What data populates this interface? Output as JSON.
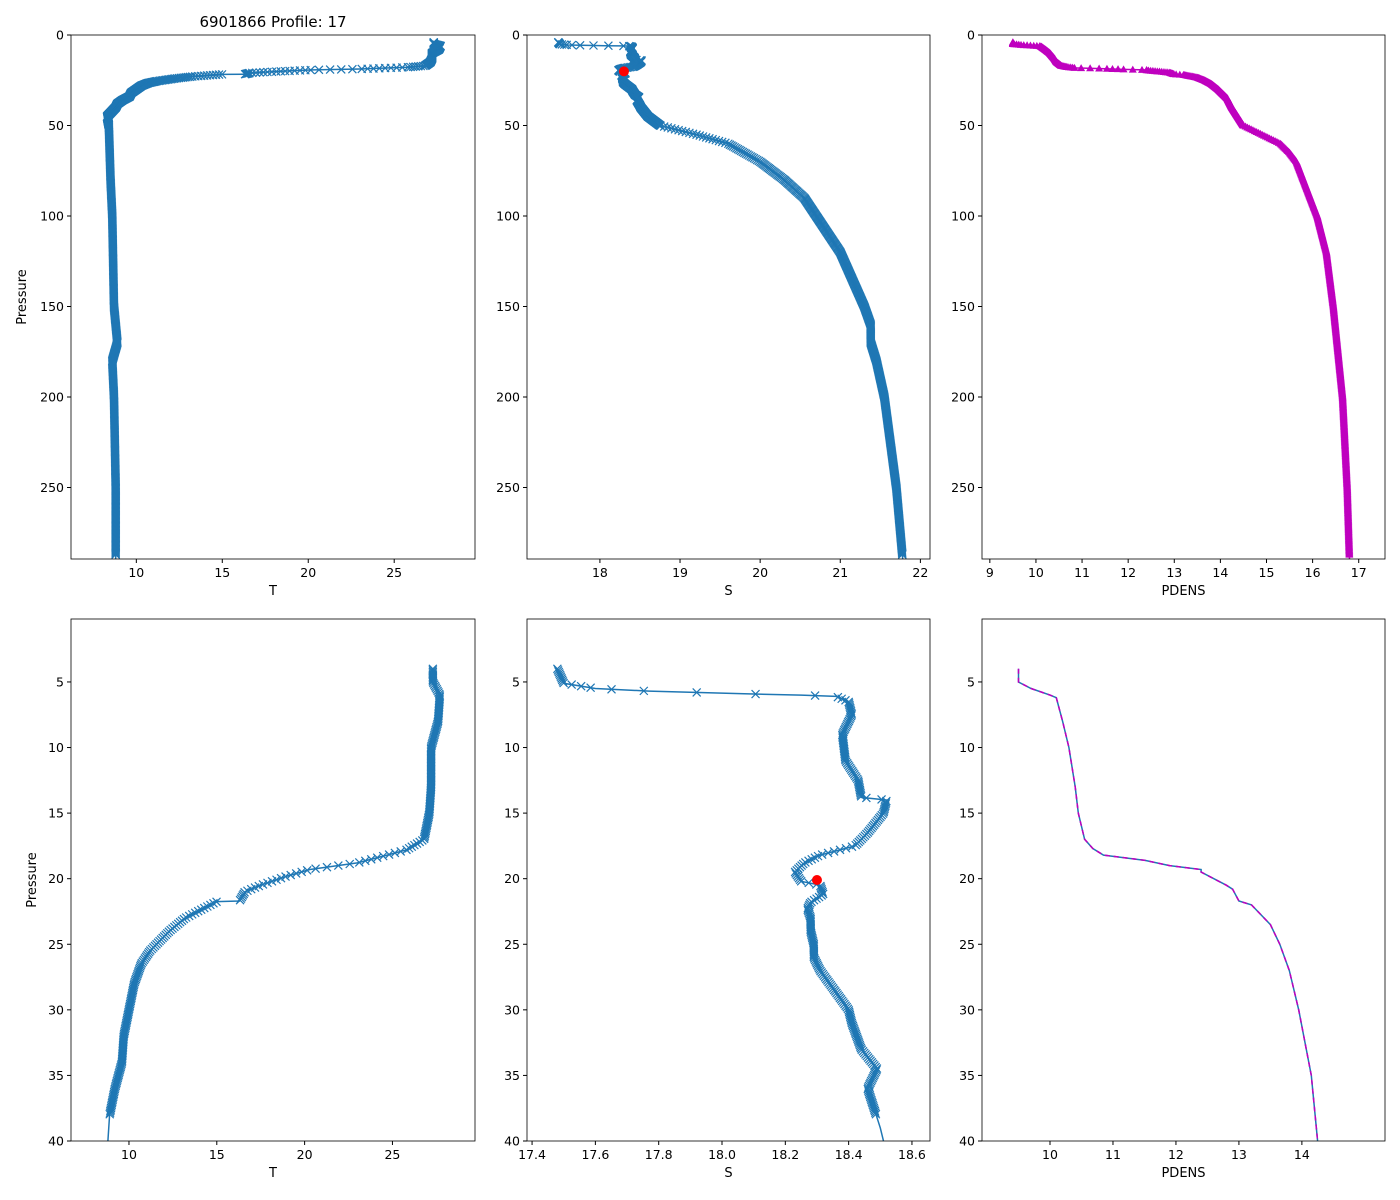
{
  "title": "6901866 Profile: 17",
  "colors": {
    "line": "#1f77b4",
    "pdens": "#bf00bf",
    "marker_red": "#ff0000"
  },
  "chart_data": {
    "type": "line",
    "profiles": {
      "T": [
        [
          4,
          27.3
        ],
        [
          5,
          27.3
        ],
        [
          6,
          27.7
        ],
        [
          8,
          27.6
        ],
        [
          10,
          27.2
        ],
        [
          13,
          27.2
        ],
        [
          15,
          27.1
        ],
        [
          17,
          26.8
        ],
        [
          17.8,
          25.8
        ],
        [
          18.2,
          24.7
        ],
        [
          18.8,
          23
        ],
        [
          19.3,
          20.3
        ],
        [
          19.8,
          19
        ],
        [
          20.5,
          17.5
        ],
        [
          21,
          16.6
        ],
        [
          21.7,
          16.3
        ],
        [
          21.75,
          15
        ],
        [
          22.3,
          14.2
        ],
        [
          23,
          13.2
        ],
        [
          24,
          12.3
        ],
        [
          25.5,
          11.2
        ],
        [
          26.5,
          10.7
        ],
        [
          28,
          10.3
        ],
        [
          30,
          10
        ],
        [
          32,
          9.7
        ],
        [
          34,
          9.6
        ],
        [
          36,
          9.2
        ],
        [
          38,
          8.9
        ],
        [
          40,
          8.8
        ],
        [
          45,
          8.3
        ],
        [
          50,
          8.4
        ],
        [
          80,
          8.5
        ],
        [
          100,
          8.6
        ],
        [
          150,
          8.7
        ],
        [
          170,
          8.9
        ],
        [
          180,
          8.6
        ],
        [
          200,
          8.7
        ],
        [
          250,
          8.8
        ],
        [
          290,
          8.8
        ]
      ],
      "S": [
        [
          4,
          17.48
        ],
        [
          5.1,
          17.5
        ],
        [
          5.5,
          17.6
        ],
        [
          5.7,
          17.77
        ],
        [
          5.9,
          18.07
        ],
        [
          6.0,
          18.25
        ],
        [
          6.1,
          18.36
        ],
        [
          6.5,
          18.4
        ],
        [
          7.5,
          18.41
        ],
        [
          9,
          18.38
        ],
        [
          11,
          18.39
        ],
        [
          12.5,
          18.43
        ],
        [
          13.8,
          18.44
        ],
        [
          14,
          18.52
        ],
        [
          15,
          18.51
        ],
        [
          16.5,
          18.46
        ],
        [
          17.5,
          18.42
        ],
        [
          18.2,
          18.31
        ],
        [
          18.8,
          18.26
        ],
        [
          19.5,
          18.23
        ],
        [
          20.2,
          18.25
        ],
        [
          20.5,
          18.31
        ],
        [
          21.2,
          18.32
        ],
        [
          21.8,
          18.28
        ],
        [
          22.3,
          18.27
        ],
        [
          23,
          18.28
        ],
        [
          24,
          18.28
        ],
        [
          25,
          18.29
        ],
        [
          26,
          18.29
        ],
        [
          27,
          18.31
        ],
        [
          28,
          18.34
        ],
        [
          29,
          18.37
        ],
        [
          30,
          18.4
        ],
        [
          31,
          18.41
        ],
        [
          33,
          18.44
        ],
        [
          34.5,
          18.49
        ],
        [
          36,
          18.46
        ],
        [
          37.5,
          18.48
        ],
        [
          39,
          18.5
        ],
        [
          40,
          18.51
        ],
        [
          45,
          18.6
        ],
        [
          50,
          18.75
        ],
        [
          55,
          19.2
        ],
        [
          60,
          19.6
        ],
        [
          70,
          20.0
        ],
        [
          80,
          20.3
        ],
        [
          90,
          20.55
        ],
        [
          100,
          20.7
        ],
        [
          120,
          21.0
        ],
        [
          150,
          21.3
        ],
        [
          160,
          21.38
        ],
        [
          170,
          21.38
        ],
        [
          180,
          21.45
        ],
        [
          200,
          21.55
        ],
        [
          250,
          21.7
        ],
        [
          290,
          21.78
        ]
      ],
      "PDENS": [
        [
          4,
          9.5
        ],
        [
          5,
          9.5
        ],
        [
          5.5,
          9.7
        ],
        [
          6,
          10.0
        ],
        [
          6.2,
          10.1
        ],
        [
          8,
          10.2
        ],
        [
          10,
          10.3
        ],
        [
          13,
          10.4
        ],
        [
          15,
          10.45
        ],
        [
          17,
          10.55
        ],
        [
          17.7,
          10.68
        ],
        [
          18.2,
          10.85
        ],
        [
          18.6,
          11.5
        ],
        [
          19,
          11.9
        ],
        [
          19.3,
          12.4
        ],
        [
          19.5,
          12.4
        ],
        [
          20.5,
          12.8
        ],
        [
          20.8,
          12.9
        ],
        [
          21.7,
          13.0
        ],
        [
          22,
          13.2
        ],
        [
          23.5,
          13.5
        ],
        [
          25,
          13.65
        ],
        [
          27,
          13.8
        ],
        [
          30,
          13.95
        ],
        [
          35,
          14.15
        ],
        [
          40,
          14.25
        ],
        [
          50,
          14.5
        ],
        [
          55,
          14.9
        ],
        [
          60,
          15.3
        ],
        [
          65,
          15.5
        ],
        [
          70,
          15.65
        ],
        [
          80,
          15.8
        ],
        [
          100,
          16.1
        ],
        [
          120,
          16.3
        ],
        [
          150,
          16.45
        ],
        [
          200,
          16.65
        ],
        [
          250,
          16.75
        ],
        [
          290,
          16.8
        ]
      ]
    },
    "highlight_point": {
      "variable": "S",
      "pressure": 20.1,
      "value": 18.3
    },
    "panels": [
      {
        "var": "T",
        "xlabel": "T",
        "ylabel": "Pressure",
        "xlim": [
          6.2,
          29.7
        ],
        "ylim": [
          289.5,
          0
        ],
        "xticks": [
          "10",
          "15",
          "20",
          "25"
        ],
        "yticks": [
          "0",
          "50",
          "100",
          "150",
          "200",
          "250"
        ],
        "style": "x-marker"
      },
      {
        "var": "S",
        "xlabel": "S",
        "ylabel": "",
        "xlim": [
          17.09,
          22.12
        ],
        "ylim": [
          289.5,
          0
        ],
        "xticks": [
          "18",
          "19",
          "20",
          "21",
          "22"
        ],
        "yticks": [
          "0",
          "50",
          "100",
          "150",
          "200",
          "250"
        ],
        "style": "x-marker"
      },
      {
        "var": "PDENS",
        "xlabel": "PDENS",
        "ylabel": "",
        "xlim": [
          8.83,
          17.57
        ],
        "ylim": [
          289.5,
          0
        ],
        "xticks": [
          "9",
          "10",
          "11",
          "12",
          "13",
          "14",
          "15",
          "16",
          "17"
        ],
        "yticks": [
          "0",
          "50",
          "100",
          "150",
          "200",
          "250"
        ],
        "style": "triangle-marker"
      },
      {
        "var": "T",
        "xlabel": "T",
        "ylabel": "Pressure",
        "xlim": [
          6.7,
          29.7
        ],
        "ylim": [
          40,
          0.2
        ],
        "xticks": [
          "10",
          "15",
          "20",
          "25"
        ],
        "yticks": [
          "5",
          "10",
          "15",
          "20",
          "25",
          "30",
          "35",
          "40"
        ],
        "style": "x-marker"
      },
      {
        "var": "S",
        "xlabel": "S",
        "ylabel": "",
        "xlim": [
          17.384,
          18.657
        ],
        "ylim": [
          40,
          0.2
        ],
        "xticks": [
          "17.4",
          "17.6",
          "17.8",
          "18.0",
          "18.2",
          "18.4",
          "18.6"
        ],
        "yticks": [
          "5",
          "10",
          "15",
          "20",
          "25",
          "30",
          "35",
          "40"
        ],
        "style": "x-marker"
      },
      {
        "var": "PDENS",
        "xlabel": "PDENS",
        "ylabel": "",
        "xlim": [
          8.92,
          15.32
        ],
        "ylim": [
          40,
          0.2
        ],
        "xticks": [
          "10",
          "11",
          "12",
          "13",
          "14"
        ],
        "yticks": [
          "5",
          "10",
          "15",
          "20",
          "25",
          "30",
          "35",
          "40"
        ],
        "style": "dashed-line"
      }
    ]
  }
}
